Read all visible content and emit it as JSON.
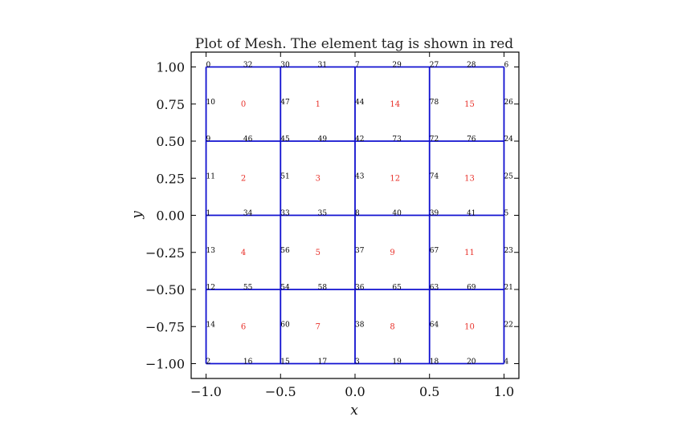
{
  "chart_data": {
    "type": "scatter",
    "title": "Plot of Mesh.  The element tag is shown in red",
    "xlabel": "x",
    "ylabel": "y",
    "xlim": [
      -1.1,
      1.1
    ],
    "ylim": [
      -1.1,
      1.1
    ],
    "xticks": [
      -1.0,
      -0.5,
      0.0,
      0.5,
      1.0
    ],
    "xtick_labels": [
      "−1.0",
      "−0.5",
      "0.0",
      "0.5",
      "1.0"
    ],
    "yticks": [
      1.0,
      0.75,
      0.5,
      0.25,
      0.0,
      -0.25,
      -0.5,
      -0.75,
      -1.0
    ],
    "ytick_labels": [
      "1.00",
      "0.75",
      "0.50",
      "0.25",
      "0.00",
      "−0.25",
      "−0.50",
      "−0.75",
      "−1.00"
    ],
    "grid": false,
    "mesh_color": "#1010d0",
    "element_label_color": "#e8312a",
    "mesh_lines_x": [
      -1.0,
      -0.5,
      0.0,
      0.5,
      1.0
    ],
    "mesh_lines_y": [
      -1.0,
      -0.5,
      0.0,
      0.5,
      1.0
    ],
    "node_labels": [
      {
        "label": "0",
        "x": -1.0,
        "y": 1.0
      },
      {
        "label": "32",
        "x": -0.75,
        "y": 1.0
      },
      {
        "label": "30",
        "x": -0.5,
        "y": 1.0
      },
      {
        "label": "31",
        "x": -0.25,
        "y": 1.0
      },
      {
        "label": "7",
        "x": 0.0,
        "y": 1.0
      },
      {
        "label": "29",
        "x": 0.25,
        "y": 1.0
      },
      {
        "label": "27",
        "x": 0.5,
        "y": 1.0
      },
      {
        "label": "28",
        "x": 0.75,
        "y": 1.0
      },
      {
        "label": "6",
        "x": 1.0,
        "y": 1.0
      },
      {
        "label": "10",
        "x": -1.0,
        "y": 0.75
      },
      {
        "label": "47",
        "x": -0.5,
        "y": 0.75
      },
      {
        "label": "44",
        "x": 0.0,
        "y": 0.75
      },
      {
        "label": "78",
        "x": 0.5,
        "y": 0.75
      },
      {
        "label": "26",
        "x": 1.0,
        "y": 0.75
      },
      {
        "label": "9",
        "x": -1.0,
        "y": 0.5
      },
      {
        "label": "46",
        "x": -0.75,
        "y": 0.5
      },
      {
        "label": "45",
        "x": -0.5,
        "y": 0.5
      },
      {
        "label": "49",
        "x": -0.25,
        "y": 0.5
      },
      {
        "label": "42",
        "x": 0.0,
        "y": 0.5
      },
      {
        "label": "73",
        "x": 0.25,
        "y": 0.5
      },
      {
        "label": "72",
        "x": 0.5,
        "y": 0.5
      },
      {
        "label": "76",
        "x": 0.75,
        "y": 0.5
      },
      {
        "label": "24",
        "x": 1.0,
        "y": 0.5
      },
      {
        "label": "11",
        "x": -1.0,
        "y": 0.25
      },
      {
        "label": "51",
        "x": -0.5,
        "y": 0.25
      },
      {
        "label": "43",
        "x": 0.0,
        "y": 0.25
      },
      {
        "label": "74",
        "x": 0.5,
        "y": 0.25
      },
      {
        "label": "25",
        "x": 1.0,
        "y": 0.25
      },
      {
        "label": "1",
        "x": -1.0,
        "y": 0.0
      },
      {
        "label": "34",
        "x": -0.75,
        "y": 0.0
      },
      {
        "label": "33",
        "x": -0.5,
        "y": 0.0
      },
      {
        "label": "35",
        "x": -0.25,
        "y": 0.0
      },
      {
        "label": "8",
        "x": 0.0,
        "y": 0.0
      },
      {
        "label": "40",
        "x": 0.25,
        "y": 0.0
      },
      {
        "label": "39",
        "x": 0.5,
        "y": 0.0
      },
      {
        "label": "41",
        "x": 0.75,
        "y": 0.0
      },
      {
        "label": "5",
        "x": 1.0,
        "y": 0.0
      },
      {
        "label": "13",
        "x": -1.0,
        "y": -0.25
      },
      {
        "label": "56",
        "x": -0.5,
        "y": -0.25
      },
      {
        "label": "37",
        "x": 0.0,
        "y": -0.25
      },
      {
        "label": "67",
        "x": 0.5,
        "y": -0.25
      },
      {
        "label": "23",
        "x": 1.0,
        "y": -0.25
      },
      {
        "label": "12",
        "x": -1.0,
        "y": -0.5
      },
      {
        "label": "55",
        "x": -0.75,
        "y": -0.5
      },
      {
        "label": "54",
        "x": -0.5,
        "y": -0.5
      },
      {
        "label": "58",
        "x": -0.25,
        "y": -0.5
      },
      {
        "label": "36",
        "x": 0.0,
        "y": -0.5
      },
      {
        "label": "65",
        "x": 0.25,
        "y": -0.5
      },
      {
        "label": "63",
        "x": 0.5,
        "y": -0.5
      },
      {
        "label": "69",
        "x": 0.75,
        "y": -0.5
      },
      {
        "label": "21",
        "x": 1.0,
        "y": -0.5
      },
      {
        "label": "14",
        "x": -1.0,
        "y": -0.75
      },
      {
        "label": "60",
        "x": -0.5,
        "y": -0.75
      },
      {
        "label": "38",
        "x": 0.0,
        "y": -0.75
      },
      {
        "label": "64",
        "x": 0.5,
        "y": -0.75
      },
      {
        "label": "22",
        "x": 1.0,
        "y": -0.75
      },
      {
        "label": "2",
        "x": -1.0,
        "y": -1.0
      },
      {
        "label": "16",
        "x": -0.75,
        "y": -1.0
      },
      {
        "label": "15",
        "x": -0.5,
        "y": -1.0
      },
      {
        "label": "17",
        "x": -0.25,
        "y": -1.0
      },
      {
        "label": "3",
        "x": 0.0,
        "y": -1.0
      },
      {
        "label": "19",
        "x": 0.25,
        "y": -1.0
      },
      {
        "label": "18",
        "x": 0.5,
        "y": -1.0
      },
      {
        "label": "20",
        "x": 0.75,
        "y": -1.0
      },
      {
        "label": "4",
        "x": 1.0,
        "y": -1.0
      }
    ],
    "element_labels": [
      {
        "label": "0",
        "x": -0.75,
        "y": 0.75
      },
      {
        "label": "1",
        "x": -0.25,
        "y": 0.75
      },
      {
        "label": "14",
        "x": 0.25,
        "y": 0.75
      },
      {
        "label": "15",
        "x": 0.75,
        "y": 0.75
      },
      {
        "label": "2",
        "x": -0.75,
        "y": 0.25
      },
      {
        "label": "3",
        "x": -0.25,
        "y": 0.25
      },
      {
        "label": "12",
        "x": 0.25,
        "y": 0.25
      },
      {
        "label": "13",
        "x": 0.75,
        "y": 0.25
      },
      {
        "label": "4",
        "x": -0.75,
        "y": -0.25
      },
      {
        "label": "5",
        "x": -0.25,
        "y": -0.25
      },
      {
        "label": "9",
        "x": 0.25,
        "y": -0.25
      },
      {
        "label": "11",
        "x": 0.75,
        "y": -0.25
      },
      {
        "label": "6",
        "x": -0.75,
        "y": -0.75
      },
      {
        "label": "7",
        "x": -0.25,
        "y": -0.75
      },
      {
        "label": "8",
        "x": 0.25,
        "y": -0.75
      },
      {
        "label": "10",
        "x": 0.75,
        "y": -0.75
      }
    ]
  }
}
